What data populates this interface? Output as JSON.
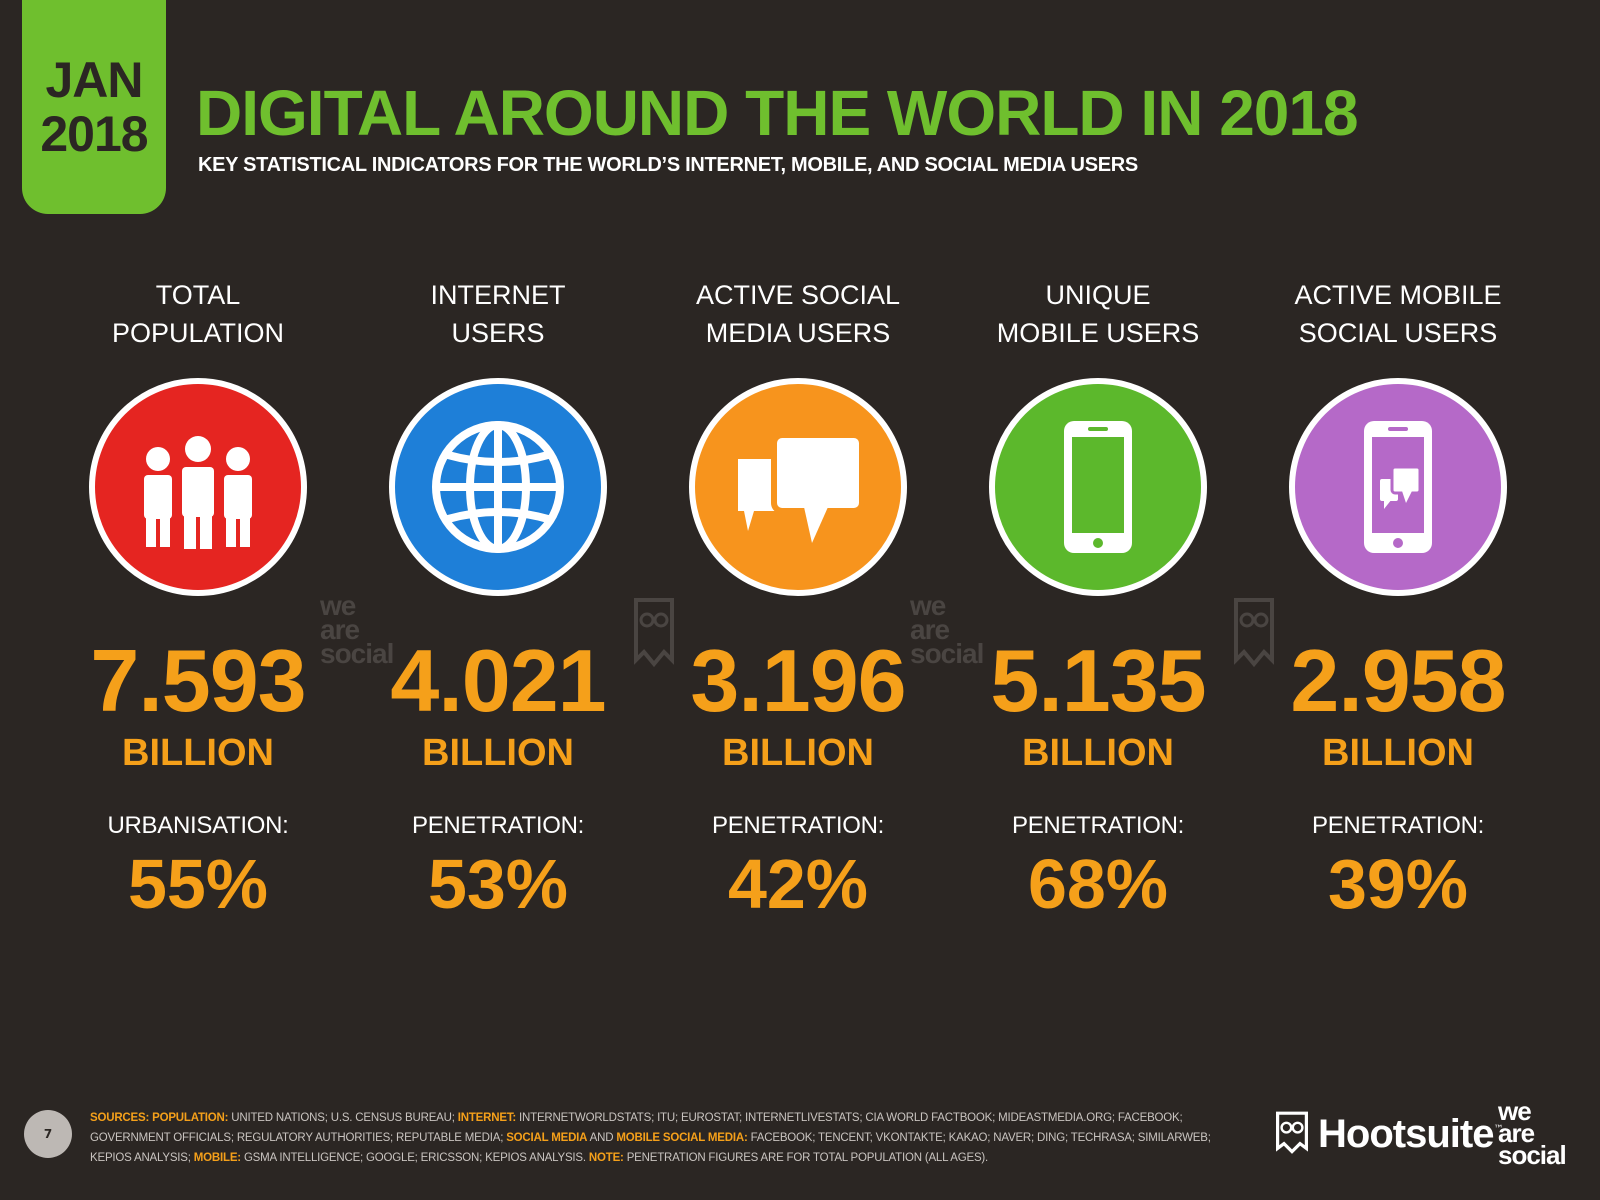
{
  "header": {
    "date_line1": "JAN",
    "date_line2": "2018",
    "title": "DIGITAL AROUND THE WORLD IN 2018",
    "subtitle": "KEY STATISTICAL INDICATORS FOR THE WORLD’S INTERNET, MOBILE, AND SOCIAL MEDIA USERS"
  },
  "colors": {
    "background": "#2b2623",
    "accent_green": "#6fbf2e",
    "value_orange": "#f5a01a",
    "population_red": "#e52521",
    "internet_blue": "#1e7fd8",
    "social_orange": "#f7941d",
    "mobile_green": "#5cb82c",
    "mobile_social_purple": "#b569c8"
  },
  "stats": [
    {
      "label": "TOTAL\nPOPULATION",
      "icon": "people-icon",
      "color": "#e52521",
      "value": "7.593",
      "unit": "BILLION",
      "metric_label": "URBANISATION:",
      "metric_value": "55%"
    },
    {
      "label": "INTERNET\nUSERS",
      "icon": "globe-icon",
      "color": "#1e7fd8",
      "value": "4.021",
      "unit": "BILLION",
      "metric_label": "PENETRATION:",
      "metric_value": "53%"
    },
    {
      "label": "ACTIVE SOCIAL\nMEDIA USERS",
      "icon": "chat-bubbles-icon",
      "color": "#f7941d",
      "value": "3.196",
      "unit": "BILLION",
      "metric_label": "PENETRATION:",
      "metric_value": "42%"
    },
    {
      "label": "UNIQUE\nMOBILE USERS",
      "icon": "mobile-phone-icon",
      "color": "#5cb82c",
      "value": "5.135",
      "unit": "BILLION",
      "metric_label": "PENETRATION:",
      "metric_value": "68%"
    },
    {
      "label": "ACTIVE MOBILE\nSOCIAL USERS",
      "icon": "mobile-chat-icon",
      "color": "#b569c8",
      "value": "2.958",
      "unit": "BILLION",
      "metric_label": "PENETRATION:",
      "metric_value": "39%"
    }
  ],
  "watermark": {
    "line1": "we",
    "line2": "are",
    "line3": "social"
  },
  "footer": {
    "page_number": "7",
    "sources_label": "SOURCES:",
    "population_label": "POPULATION:",
    "population_text": "UNITED NATIONS; U.S. CENSUS BUREAU;",
    "internet_label": "INTERNET:",
    "internet_text": "INTERNETWORLDSTATS; ITU; EUROSTAT; INTERNETLIVESTATS; CIA WORLD FACTBOOK; MIDEASTMEDIA.ORG; FACEBOOK; GOVERNMENT OFFICIALS; REGULATORY AUTHORITIES; REPUTABLE MEDIA;",
    "social_label": "SOCIAL MEDIA",
    "and_text": "AND",
    "mobile_social_label": "MOBILE SOCIAL MEDIA:",
    "social_text": "FACEBOOK; TENCENT; VKONTAKTE; KAKAO; NAVER; DING; TECHRASA; SIMILARWEB; KEPIOS ANALYSIS;",
    "mobile_label": "MOBILE:",
    "mobile_text": "GSMA INTELLIGENCE; GOOGLE; ERICSSON; KEPIOS ANALYSIS.",
    "note_label": "NOTE:",
    "note_text": "PENETRATION FIGURES ARE FOR TOTAL POPULATION (ALL AGES).",
    "hootsuite": "Hootsuite",
    "hootsuite_tm": "™",
    "was_line1": "we",
    "was_line2": "are",
    "was_line3": "social"
  }
}
